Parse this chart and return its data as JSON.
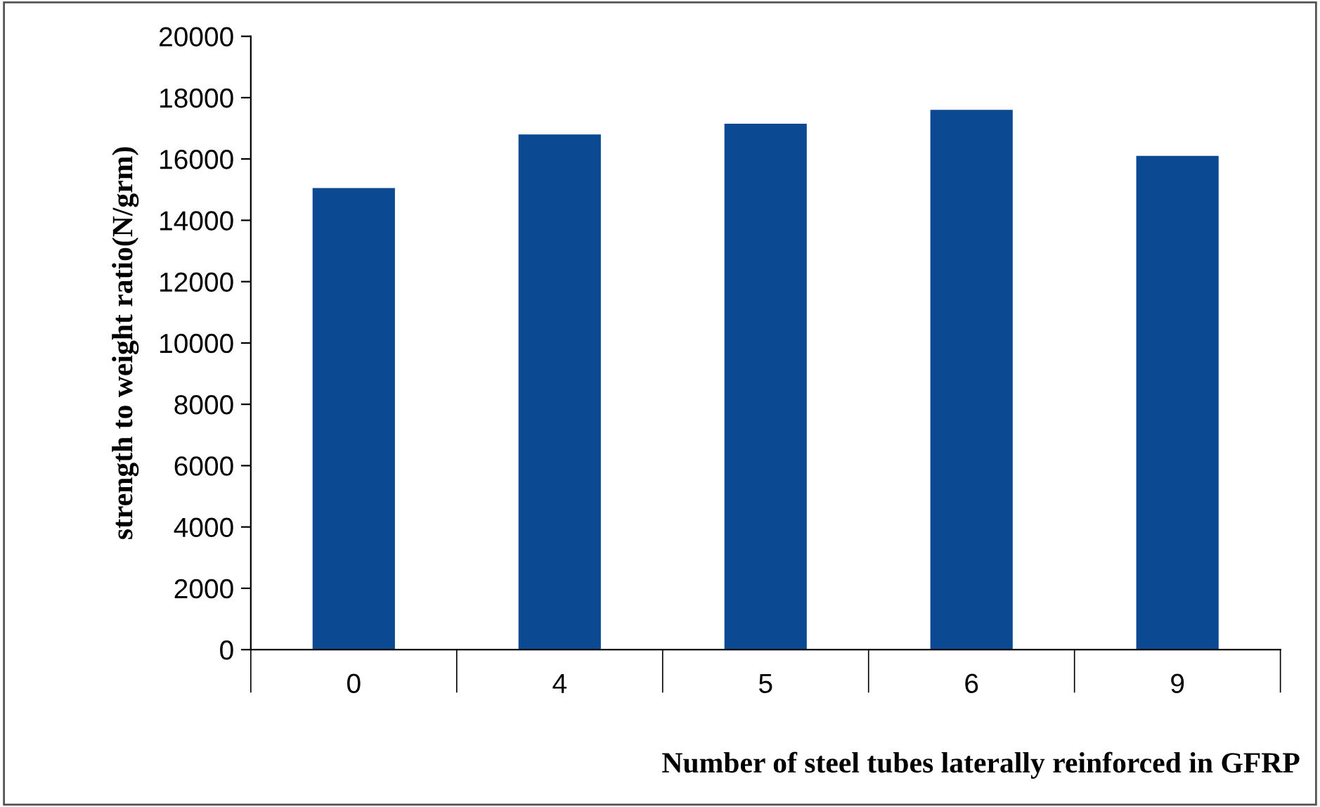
{
  "chart_data": {
    "type": "bar",
    "xlabel": "Number of steel tubes laterally reinforced in GFRP",
    "ylabel": "strength to weight ratio(N/grm)",
    "categories": [
      "0",
      "4",
      "5",
      "6",
      "9"
    ],
    "values": [
      15050,
      16800,
      17150,
      17600,
      16100
    ],
    "color": "#0b4992",
    "ylim": [
      0,
      20000
    ],
    "yticks": [
      0,
      2000,
      4000,
      6000,
      8000,
      10000,
      12000,
      14000,
      16000,
      18000,
      20000
    ],
    "grid": false,
    "legend": false
  }
}
